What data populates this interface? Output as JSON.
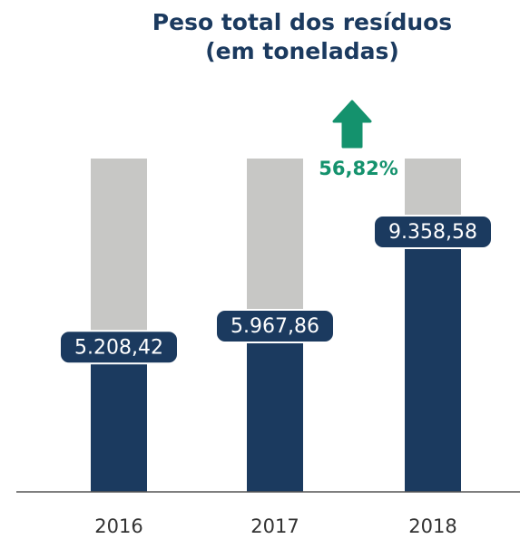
{
  "chart_data": {
    "type": "bar",
    "title": [
      "Peso total dos resíduos",
      "(em toneladas)"
    ],
    "categories": [
      "2016",
      "2017",
      "2018"
    ],
    "values": [
      5208.42,
      5967.86,
      9358.58
    ],
    "value_labels": [
      "5.208,42",
      "5.967,86",
      "9.358,58"
    ],
    "annotation": "56,82%",
    "color": "#1b3a5f",
    "background_color": "#c7c7c5",
    "annotation_color": "#14926d",
    "ylim": [
      0,
      12000
    ]
  }
}
